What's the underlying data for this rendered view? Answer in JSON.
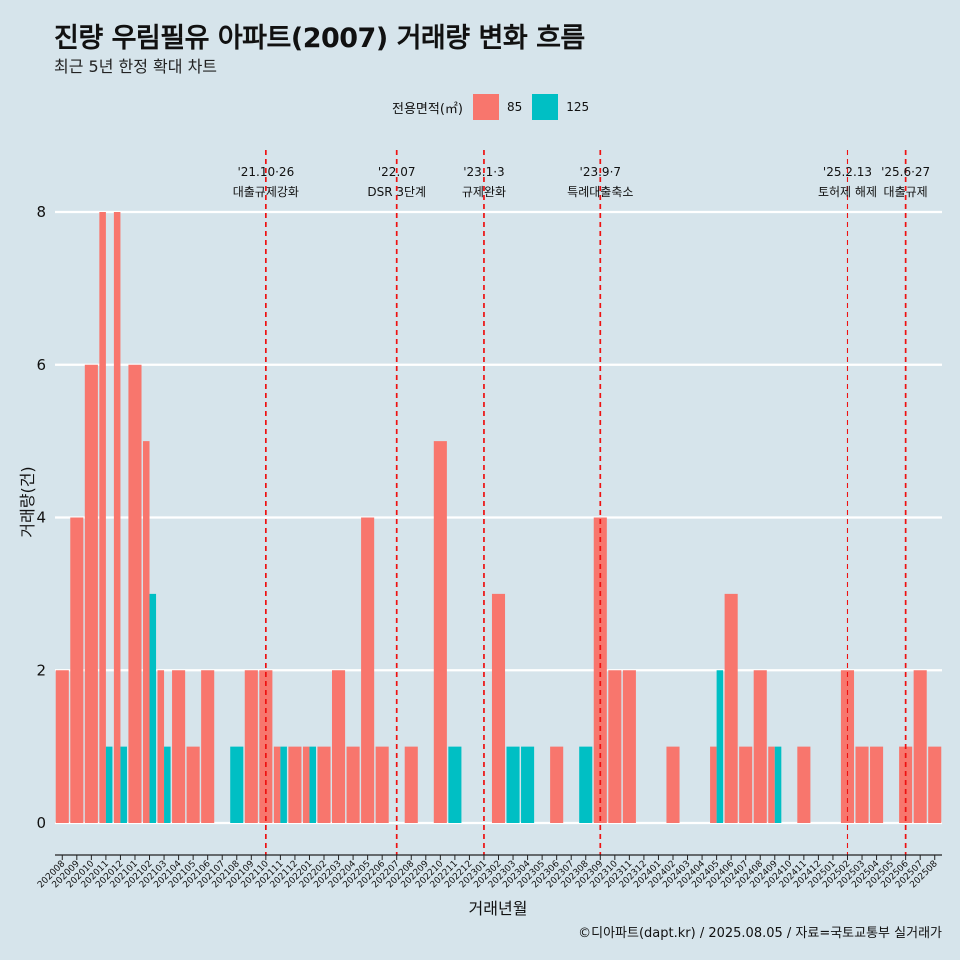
{
  "header": {
    "title": "진량 우림필유 아파트(2007) 거래량 변화 흐름",
    "subtitle": "최근 5년 한정 확대 차트"
  },
  "legend": {
    "title": "전용면적(㎡)",
    "items": [
      {
        "label": "85",
        "color": "#f8766d"
      },
      {
        "label": "125",
        "color": "#00bfc4"
      }
    ]
  },
  "caption": "©디아파트(dapt.kr) / 2025.08.05 / 자료=국토교통부 실거래가",
  "chart_data": {
    "type": "bar",
    "xlabel": "거래년월",
    "ylabel": "거래량(건)",
    "ylim": [
      0,
      8
    ],
    "yticks": [
      0,
      2,
      4,
      6,
      8
    ],
    "grid": true,
    "legend_position": "top",
    "categories": [
      "202008",
      "202009",
      "202010",
      "202011",
      "202012",
      "202101",
      "202102",
      "202103",
      "202104",
      "202105",
      "202106",
      "202107",
      "202108",
      "202109",
      "202110",
      "202111",
      "202112",
      "202201",
      "202202",
      "202203",
      "202204",
      "202205",
      "202206",
      "202207",
      "202208",
      "202209",
      "202210",
      "202211",
      "202212",
      "202301",
      "202302",
      "202303",
      "202304",
      "202305",
      "202306",
      "202307",
      "202308",
      "202309",
      "202310",
      "202311",
      "202312",
      "202401",
      "202402",
      "202403",
      "202404",
      "202405",
      "202406",
      "202407",
      "202408",
      "202409",
      "202410",
      "202411",
      "202412",
      "202501",
      "202502",
      "202503",
      "202504",
      "202505",
      "202506",
      "202507",
      "202508"
    ],
    "series": [
      {
        "name": "85",
        "color": "#f8766d",
        "values": [
          2,
          4,
          6,
          8,
          8,
          6,
          5,
          2,
          2,
          1,
          2,
          0,
          0,
          2,
          2,
          1,
          1,
          1,
          1,
          2,
          1,
          4,
          1,
          0,
          1,
          0,
          5,
          0,
          0,
          0,
          3,
          0,
          0,
          0,
          1,
          0,
          0,
          4,
          2,
          2,
          0,
          0,
          1,
          0,
          0,
          1,
          3,
          1,
          2,
          1,
          0,
          1,
          0,
          0,
          2,
          1,
          1,
          0,
          1,
          2,
          1
        ]
      },
      {
        "name": "125",
        "color": "#00bfc4",
        "values": [
          0,
          0,
          0,
          1,
          1,
          0,
          3,
          1,
          0,
          0,
          0,
          0,
          1,
          0,
          0,
          1,
          0,
          1,
          0,
          0,
          0,
          0,
          0,
          0,
          0,
          0,
          0,
          1,
          0,
          0,
          0,
          1,
          1,
          0,
          0,
          0,
          1,
          0,
          0,
          0,
          0,
          0,
          0,
          0,
          0,
          2,
          0,
          0,
          0,
          1,
          0,
          0,
          0,
          0,
          0,
          0,
          0,
          0,
          0,
          0,
          0
        ]
      }
    ],
    "annotations": [
      {
        "month": "202110",
        "date": "'21.10·26",
        "text": "대출규제강화",
        "style": "bold"
      },
      {
        "month": "202207",
        "date": "'22.07",
        "text": "DSR 3단계",
        "style": "bold"
      },
      {
        "month": "202301",
        "date": "'23.1·3",
        "text": "규제완화",
        "style": "bold"
      },
      {
        "month": "202309",
        "date": "'23.9·7",
        "text": "특례대출축소",
        "style": "bold"
      },
      {
        "month": "202502",
        "date": "'25.2.13",
        "text": "토허제 해제",
        "style": "thin"
      },
      {
        "month": "202506",
        "date": "'25.6·27",
        "text": "대출규제",
        "style": "bold"
      }
    ]
  }
}
